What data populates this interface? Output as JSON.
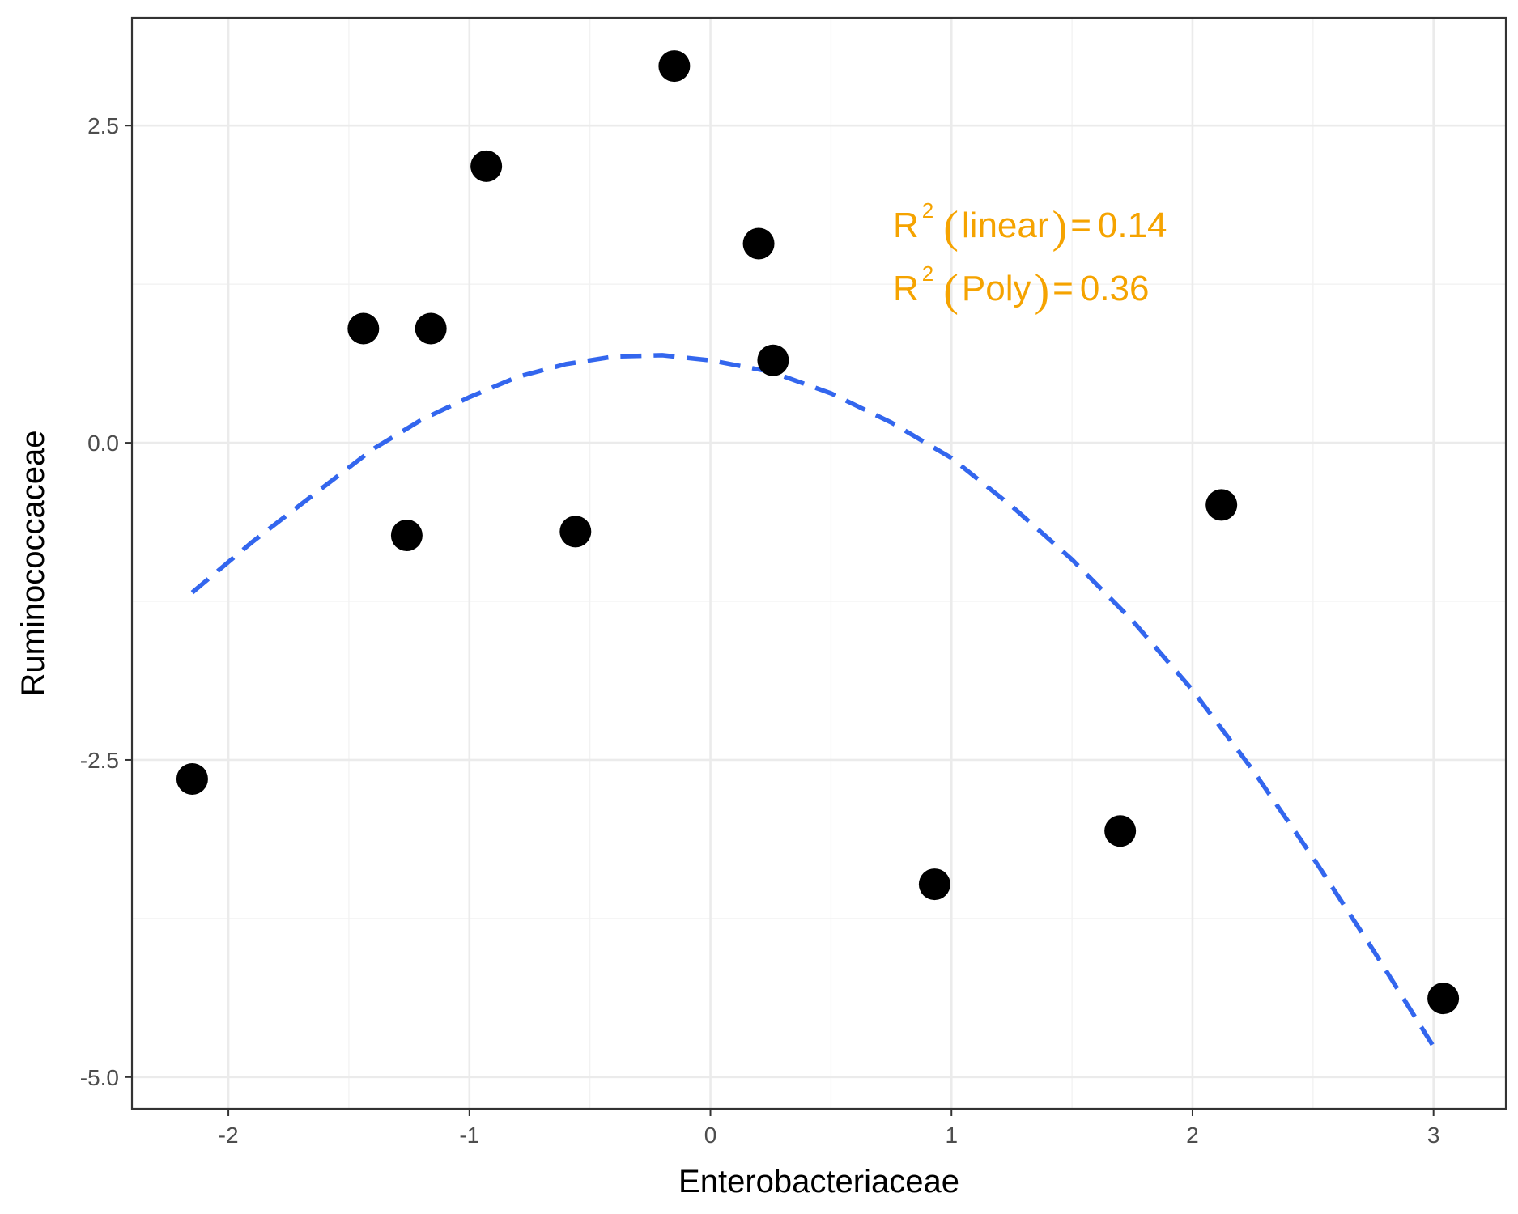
{
  "chart_data": {
    "type": "scatter",
    "xlabel": "Enterobacteriaceae",
    "ylabel": "Ruminococcaceae",
    "xlim": [
      -2.4,
      3.3
    ],
    "ylim": [
      -5.25,
      3.35
    ],
    "x_ticks": [
      -2,
      -1,
      0,
      1,
      2,
      3
    ],
    "x_tick_labels": [
      "-2",
      "-1",
      "0",
      "1",
      "2",
      "3"
    ],
    "y_ticks": [
      -5.0,
      -2.5,
      0.0,
      2.5
    ],
    "y_tick_labels": [
      "-5.0",
      "-2.5",
      "0.0",
      "2.5"
    ],
    "grid": true,
    "points": [
      {
        "x": -2.15,
        "y": -2.65
      },
      {
        "x": -1.44,
        "y": 0.9
      },
      {
        "x": -1.26,
        "y": -0.73
      },
      {
        "x": -1.16,
        "y": 0.9
      },
      {
        "x": -0.93,
        "y": 2.18
      },
      {
        "x": -0.56,
        "y": -0.7
      },
      {
        "x": -0.15,
        "y": 2.97
      },
      {
        "x": 0.2,
        "y": 1.57
      },
      {
        "x": 0.26,
        "y": 0.65
      },
      {
        "x": 0.93,
        "y": -3.48
      },
      {
        "x": 1.7,
        "y": -3.06
      },
      {
        "x": 2.12,
        "y": -0.49
      },
      {
        "x": 3.04,
        "y": -4.38
      }
    ],
    "fit_curve": {
      "style": "dashed",
      "color": "#3366ee",
      "x": [
        -2.15,
        -1.9,
        -1.6,
        -1.4,
        -1.2,
        -1.0,
        -0.8,
        -0.6,
        -0.4,
        -0.2,
        0.0,
        0.25,
        0.5,
        0.75,
        1.0,
        1.25,
        1.5,
        1.75,
        2.0,
        2.25,
        2.5,
        2.75,
        3.0
      ],
      "y": [
        -1.18,
        -0.78,
        -0.34,
        -0.05,
        0.18,
        0.36,
        0.52,
        0.62,
        0.68,
        0.69,
        0.65,
        0.56,
        0.39,
        0.16,
        -0.12,
        -0.5,
        -0.92,
        -1.4,
        -1.95,
        -2.58,
        -3.27,
        -4.0,
        -4.76
      ]
    },
    "annotations": [
      {
        "label": "R",
        "sup": "2",
        "name": "linear",
        "eq": "=",
        "value": "0.14",
        "color": "#F5A300"
      },
      {
        "label": "R",
        "sup": "2",
        "name": "Poly",
        "eq": "=",
        "value": "0.36",
        "color": "#F5A300"
      }
    ]
  }
}
